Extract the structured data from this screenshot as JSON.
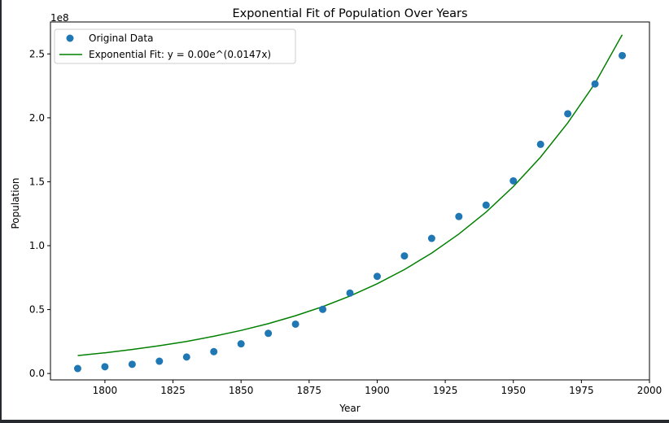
{
  "chart_data": {
    "type": "scatter",
    "title": "Exponential Fit of Population Over Years",
    "xlabel": "Year",
    "ylabel": "Population",
    "y_offset_label": "1e8",
    "xlim": [
      1780,
      2000
    ],
    "ylim": [
      -5000000,
      275000000
    ],
    "x_ticks": [
      1800,
      1825,
      1850,
      1875,
      1900,
      1925,
      1950,
      1975,
      2000
    ],
    "x_tick_labels": [
      "1800",
      "1825",
      "1850",
      "1875",
      "1900",
      "1925",
      "1950",
      "1975",
      "2000"
    ],
    "y_ticks": [
      0,
      50000000,
      100000000,
      150000000,
      200000000,
      250000000
    ],
    "y_tick_labels": [
      "0.0",
      "0.5",
      "1.0",
      "1.5",
      "2.0",
      "2.5"
    ],
    "grid": false,
    "legend_position": "top-left",
    "series": [
      {
        "name": "Original Data",
        "kind": "scatter",
        "color": "#1f77b4",
        "x": [
          1790,
          1800,
          1810,
          1820,
          1830,
          1840,
          1850,
          1860,
          1870,
          1880,
          1890,
          1900,
          1910,
          1920,
          1930,
          1940,
          1950,
          1960,
          1970,
          1980,
          1990
        ],
        "y": [
          3900000,
          5300000,
          7200000,
          9600000,
          12900000,
          17100000,
          23200000,
          31400000,
          38600000,
          50200000,
          62900000,
          76000000,
          92000000,
          105700000,
          122800000,
          131700000,
          150700000,
          179300000,
          203200000,
          226500000,
          248700000
        ]
      },
      {
        "name": "Exponential Fit: y = 0.00e^(0.0147x)",
        "kind": "line",
        "color": "#008000",
        "x": [
          1790,
          1800,
          1810,
          1820,
          1830,
          1840,
          1850,
          1860,
          1870,
          1880,
          1890,
          1900,
          1910,
          1920,
          1930,
          1940,
          1950,
          1960,
          1970,
          1980,
          1990
        ],
        "y": [
          14000000,
          16200000,
          18800000,
          21700000,
          25100000,
          29100000,
          33700000,
          39000000,
          45200000,
          52300000,
          60600000,
          70200000,
          81300000,
          94200000,
          109100000,
          126300000,
          146200000,
          169300000,
          196000000,
          227000000,
          265000000
        ]
      }
    ]
  }
}
